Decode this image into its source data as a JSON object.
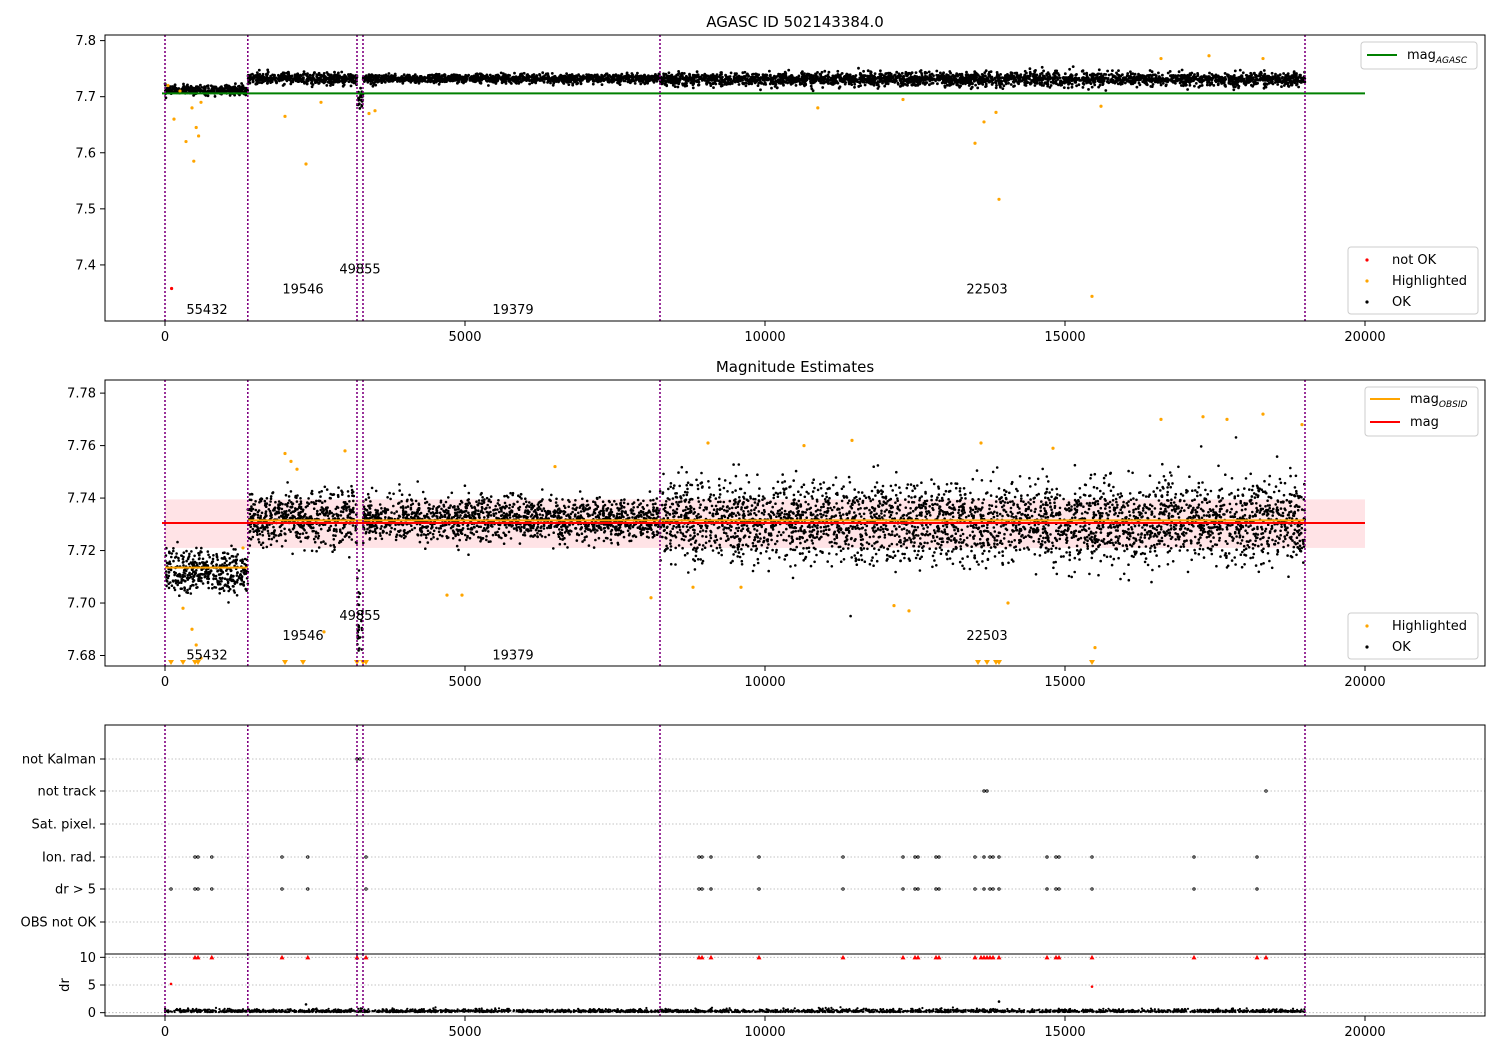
{
  "figure": {
    "title_top": "AGASC ID 502143384.0",
    "title_mid": "Magnitude Estimates"
  },
  "legends": {
    "top_line": "mag",
    "top_line_sub": "AGASC",
    "top_points": [
      "not OK",
      "Highlighted",
      "OK"
    ],
    "mid_line1": "mag",
    "mid_line1_sub": "OBSID",
    "mid_line2": "mag",
    "mid_points": [
      "Highlighted",
      "OK"
    ]
  },
  "colors": {
    "ok": "#000000",
    "highlighted": "#ffa500",
    "not_ok": "#ff0000",
    "agasc_line": "#008000",
    "obsid_line": "#ffa500",
    "mag_line": "#ff0000",
    "band": "#ffc0c8",
    "obs_boundary": "#800080",
    "grid": "#b0b0b0"
  },
  "chart_data": [
    {
      "type": "scatter",
      "title": "AGASC ID 502143384.0",
      "xlim": [
        -1000,
        22000
      ],
      "ylim": [
        7.3,
        7.81
      ],
      "xticks": [
        0,
        5000,
        10000,
        15000,
        20000
      ],
      "yticks": [
        7.4,
        7.5,
        7.6,
        7.7,
        7.8
      ],
      "agasc_mag": 7.706,
      "obs_boundaries": [
        0,
        1380,
        3200,
        3300,
        8250,
        19000
      ],
      "obs_labels": [
        {
          "text": "55432",
          "x": 700,
          "y": 7.32
        },
        {
          "text": "19546",
          "x": 2300,
          "y": 7.356
        },
        {
          "text": "49855",
          "x": 3250,
          "y": 7.392
        },
        {
          "text": "19379",
          "x": 5800,
          "y": 7.32
        },
        {
          "text": "22503",
          "x": 13700,
          "y": 7.356
        }
      ],
      "obs_segments": [
        {
          "x0": 0,
          "x1": 1380,
          "mean": 7.712,
          "spread": 0.004
        },
        {
          "x0": 1380,
          "x1": 3200,
          "mean": 7.732,
          "spread": 0.005
        },
        {
          "x0": 3200,
          "x1": 3300,
          "mean": 7.695,
          "spread": 0.008
        },
        {
          "x0": 3300,
          "x1": 8250,
          "mean": 7.732,
          "spread": 0.004
        },
        {
          "x0": 8250,
          "x1": 19000,
          "mean": 7.731,
          "spread": 0.006
        }
      ],
      "highlighted_points": [
        [
          50,
          7.72
        ],
        [
          150,
          7.66
        ],
        [
          250,
          7.71
        ],
        [
          350,
          7.62
        ],
        [
          450,
          7.68
        ],
        [
          480,
          7.585
        ],
        [
          520,
          7.645
        ],
        [
          560,
          7.63
        ],
        [
          600,
          7.69
        ],
        [
          2000,
          7.665
        ],
        [
          2350,
          7.58
        ],
        [
          2600,
          7.69
        ],
        [
          3400,
          7.67
        ],
        [
          3500,
          7.675
        ],
        [
          10880,
          7.68
        ],
        [
          12300,
          7.695
        ],
        [
          13500,
          7.617
        ],
        [
          13650,
          7.655
        ],
        [
          13850,
          7.672
        ],
        [
          13900,
          7.517
        ],
        [
          15450,
          7.344
        ],
        [
          15600,
          7.683
        ],
        [
          16600,
          7.768
        ],
        [
          17400,
          7.773
        ],
        [
          18300,
          7.768
        ]
      ],
      "not_ok_points": [
        [
          110,
          7.358
        ]
      ],
      "legend": [
        "not OK",
        "Highlighted",
        "OK"
      ]
    },
    {
      "type": "scatter",
      "title": "Magnitude Estimates",
      "xlim": [
        -1000,
        22000
      ],
      "ylim": [
        7.676,
        7.785
      ],
      "xticks": [
        0,
        5000,
        10000,
        15000,
        20000
      ],
      "yticks": [
        7.68,
        7.7,
        7.72,
        7.74,
        7.76,
        7.78
      ],
      "mag": 7.7305,
      "band": [
        7.721,
        7.7395
      ],
      "obsid_mags": [
        {
          "x0": 0,
          "x1": 1380,
          "mag": 7.7135
        },
        {
          "x0": 1380,
          "x1": 19000,
          "mag": 7.7315
        }
      ],
      "highlighted_points": [
        [
          300,
          7.698
        ],
        [
          450,
          7.69
        ],
        [
          520,
          7.684
        ],
        [
          600,
          7.679
        ],
        [
          1300,
          7.721
        ],
        [
          2000,
          7.757
        ],
        [
          2100,
          7.754
        ],
        [
          2200,
          7.751
        ],
        [
          2650,
          7.689
        ],
        [
          3000,
          7.758
        ],
        [
          4700,
          7.703
        ],
        [
          4950,
          7.703
        ],
        [
          6500,
          7.752
        ],
        [
          8100,
          7.702
        ],
        [
          8800,
          7.706
        ],
        [
          9050,
          7.761
        ],
        [
          9600,
          7.706
        ],
        [
          10650,
          7.76
        ],
        [
          11450,
          7.762
        ],
        [
          12150,
          7.699
        ],
        [
          12400,
          7.697
        ],
        [
          13600,
          7.761
        ],
        [
          14050,
          7.7
        ],
        [
          14800,
          7.759
        ],
        [
          15500,
          7.683
        ],
        [
          16600,
          7.77
        ],
        [
          17300,
          7.771
        ],
        [
          17700,
          7.77
        ],
        [
          18300,
          7.772
        ],
        [
          18950,
          7.768
        ]
      ],
      "lower_markers": [
        100,
        300,
        500,
        550,
        2000,
        2300,
        3200,
        3300,
        3350,
        13550,
        13700,
        13850,
        13900,
        15450
      ],
      "legend": [
        "Highlighted",
        "OK"
      ]
    },
    {
      "type": "scatter",
      "title": "",
      "xlim": [
        -1000,
        22000
      ],
      "xticks": [
        0,
        5000,
        10000,
        15000,
        20000
      ],
      "flag_categories": [
        "not Kalman",
        "not track",
        "Sat. pixel.",
        "Ion. rad.",
        "dr > 5",
        "OBS not OK"
      ],
      "flag_points": {
        "not Kalman": [
          3200,
          3250
        ],
        "not track": [
          13650,
          13700,
          18350
        ],
        "Sat. pixel.": [],
        "Ion. rad.": [
          500,
          550,
          780,
          1950,
          2380,
          3350,
          8900,
          8950,
          9100,
          9900,
          11300,
          12300,
          12500,
          12550,
          12850,
          12900,
          13500,
          13650,
          13750,
          13800,
          13900,
          14700,
          14850,
          14900,
          15450,
          17150,
          18200
        ],
        "dr > 5": [
          100,
          500,
          550,
          780,
          1950,
          2380,
          3350,
          8900,
          8950,
          9100,
          9900,
          11300,
          12300,
          12500,
          12550,
          12850,
          12900,
          13500,
          13650,
          13750,
          13800,
          13900,
          14700,
          14850,
          14900,
          15450,
          17150,
          18200
        ],
        "OBS not OK": []
      },
      "dr_ylabel": "dr",
      "dr_yticks": [
        0,
        5,
        10
      ],
      "dr_ylim": [
        -0.6,
        10.6
      ],
      "dr_capped_points": [
        500,
        550,
        780,
        1950,
        2380,
        3200,
        3350,
        8900,
        8950,
        9100,
        9900,
        11300,
        12300,
        12500,
        12550,
        12850,
        12900,
        13500,
        13600,
        13650,
        13700,
        13750,
        13800,
        13900,
        14700,
        14850,
        14900,
        15450,
        17150,
        18200,
        18350
      ],
      "dr_outliers": [
        [
          100,
          5.2
        ],
        [
          2350,
          1.5
        ],
        [
          13900,
          2
        ],
        [
          15450,
          4.7
        ]
      ]
    }
  ]
}
